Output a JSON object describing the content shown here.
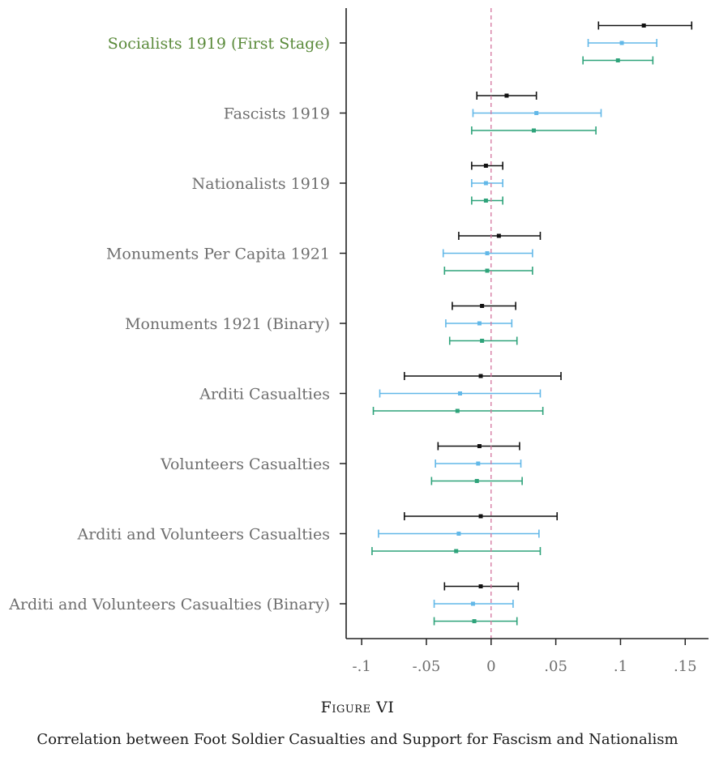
{
  "chart_data": {
    "type": "coefficient-plot",
    "title": "",
    "xlabel": "",
    "ylabel": "",
    "xlim": [
      -0.112,
      0.168
    ],
    "xticks": [
      -0.1,
      -0.05,
      0,
      0.05,
      0.1,
      0.15
    ],
    "xtick_labels": [
      "-.1",
      "-.05",
      "0",
      ".05",
      ".1",
      ".15"
    ],
    "reference_line": {
      "x": 0,
      "style": "dashed",
      "color": "#d4739d"
    },
    "grid": false,
    "series_colors": [
      "#111111",
      "#62b8e8",
      "#2ea37a"
    ],
    "highlight_label_color": "#5a8a3a",
    "categories": [
      {
        "label": "Socialists 1919 (First Stage)",
        "highlight": true,
        "estimates": [
          {
            "point": 0.118,
            "low": 0.083,
            "high": 0.155
          },
          {
            "point": 0.101,
            "low": 0.075,
            "high": 0.128
          },
          {
            "point": 0.098,
            "low": 0.071,
            "high": 0.125
          }
        ]
      },
      {
        "label": "Fascists 1919",
        "estimates": [
          {
            "point": 0.012,
            "low": -0.011,
            "high": 0.035
          },
          {
            "point": 0.035,
            "low": -0.014,
            "high": 0.085
          },
          {
            "point": 0.033,
            "low": -0.015,
            "high": 0.081
          }
        ]
      },
      {
        "label": "Nationalists 1919",
        "estimates": [
          {
            "point": -0.004,
            "low": -0.015,
            "high": 0.009
          },
          {
            "point": -0.004,
            "low": -0.015,
            "high": 0.009
          },
          {
            "point": -0.004,
            "low": -0.015,
            "high": 0.009
          }
        ]
      },
      {
        "label": "Monuments Per Capita 1921",
        "estimates": [
          {
            "point": 0.006,
            "low": -0.025,
            "high": 0.038
          },
          {
            "point": -0.003,
            "low": -0.037,
            "high": 0.032
          },
          {
            "point": -0.003,
            "low": -0.036,
            "high": 0.032
          }
        ]
      },
      {
        "label": "Monuments 1921 (Binary)",
        "estimates": [
          {
            "point": -0.007,
            "low": -0.03,
            "high": 0.019
          },
          {
            "point": -0.009,
            "low": -0.035,
            "high": 0.016
          },
          {
            "point": -0.007,
            "low": -0.032,
            "high": 0.02
          }
        ]
      },
      {
        "label": "Arditi Casualties",
        "estimates": [
          {
            "point": -0.008,
            "low": -0.067,
            "high": 0.054
          },
          {
            "point": -0.024,
            "low": -0.086,
            "high": 0.038
          },
          {
            "point": -0.026,
            "low": -0.091,
            "high": 0.04
          }
        ]
      },
      {
        "label": "Volunteers Casualties",
        "estimates": [
          {
            "point": -0.009,
            "low": -0.041,
            "high": 0.022
          },
          {
            "point": -0.01,
            "low": -0.043,
            "high": 0.023
          },
          {
            "point": -0.011,
            "low": -0.046,
            "high": 0.024
          }
        ]
      },
      {
        "label": "Arditi and Volunteers Casualties",
        "estimates": [
          {
            "point": -0.008,
            "low": -0.067,
            "high": 0.051
          },
          {
            "point": -0.025,
            "low": -0.087,
            "high": 0.037
          },
          {
            "point": -0.027,
            "low": -0.092,
            "high": 0.038
          }
        ]
      },
      {
        "label": "Arditi and Volunteers Casualties (Binary)",
        "estimates": [
          {
            "point": -0.008,
            "low": -0.036,
            "high": 0.021
          },
          {
            "point": -0.014,
            "low": -0.044,
            "high": 0.017
          },
          {
            "point": -0.013,
            "low": -0.044,
            "high": 0.02
          }
        ]
      }
    ]
  },
  "caption": {
    "figure_label": "Figure VI",
    "title": "Correlation between Foot Soldier Casualties and Support for Fascism and Nationalism"
  }
}
